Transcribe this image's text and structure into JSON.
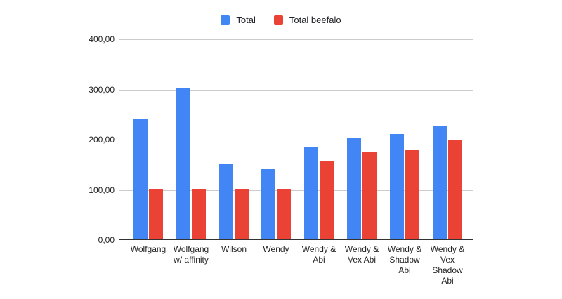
{
  "chart_data": {
    "type": "bar",
    "title": "",
    "xlabel": "",
    "ylabel": "",
    "grid": true,
    "legend_position": "top",
    "ylim": [
      0,
      400
    ],
    "yticks": [
      {
        "value": 400,
        "label": "400,00"
      },
      {
        "value": 300,
        "label": "300,00"
      },
      {
        "value": 200,
        "label": "200,00"
      },
      {
        "value": 100,
        "label": "100,00"
      },
      {
        "value": 0,
        "label": "0,00"
      }
    ],
    "categories": [
      "Wolfgang",
      "Wolfgang w/ affinity",
      "Wilson",
      "Wendy",
      "Wendy & Abi",
      "Wendy & Vex Abi",
      "Wendy & Shadow Abi",
      "Wendy & Vex Shadow Abi"
    ],
    "category_label_lines": [
      [
        "Wolfgang"
      ],
      [
        "Wolfgang",
        "w/ affinity"
      ],
      [
        "Wilson"
      ],
      [
        "Wendy"
      ],
      [
        "Wendy &",
        "Abi"
      ],
      [
        "Wendy &",
        "Vex Abi"
      ],
      [
        "Wendy &",
        "Shadow",
        "Abi"
      ],
      [
        "Wendy &",
        "Vex",
        "Shadow",
        "Abi"
      ]
    ],
    "series": [
      {
        "name": "Total",
        "color": "#4285F4",
        "values": [
          240,
          301,
          151,
          140,
          185,
          202,
          210,
          227
        ]
      },
      {
        "name": "Total beefalo",
        "color": "#EA4335",
        "values": [
          101,
          101,
          101,
          101,
          155,
          175,
          178,
          199
        ]
      }
    ]
  },
  "colors": {
    "background": "#ffffff",
    "gridline": "#cccccc",
    "axis_line": "#333333",
    "text": "#1f1f1f"
  }
}
